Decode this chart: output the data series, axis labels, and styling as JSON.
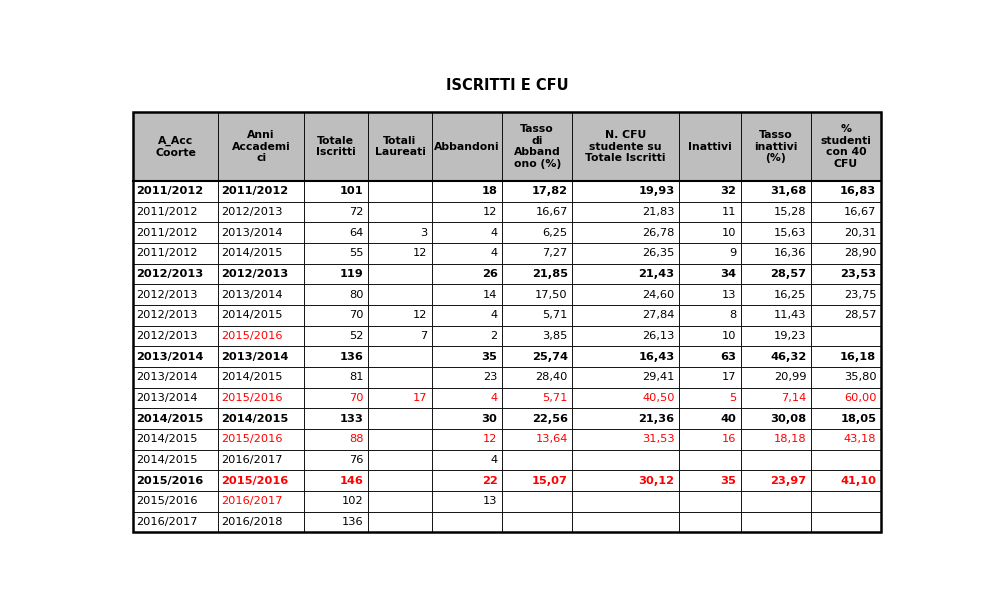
{
  "title": "ISCRITTI E CFU",
  "headers": [
    "A_Acc\nCoorte",
    "Anni\nAccademi\nci",
    "Totale\nIscritti",
    "Totali\nLaureati",
    "Abbandoni",
    "Tasso\ndi\nAbband\nono (%)",
    "N. CFU\nstudente su\nTotale Iscritti",
    "Inattivi",
    "Tasso\ninattivi\n(%)",
    "%\nstudenti\ncon 40\nCFU"
  ],
  "rows": [
    [
      "2011/2012",
      "2011/2012",
      "101",
      "",
      "18",
      "17,82",
      "19,93",
      "32",
      "31,68",
      "16,83"
    ],
    [
      "2011/2012",
      "2012/2013",
      "72",
      "",
      "12",
      "16,67",
      "21,83",
      "11",
      "15,28",
      "16,67"
    ],
    [
      "2011/2012",
      "2013/2014",
      "64",
      "3",
      "4",
      "6,25",
      "26,78",
      "10",
      "15,63",
      "20,31"
    ],
    [
      "2011/2012",
      "2014/2015",
      "55",
      "12",
      "4",
      "7,27",
      "26,35",
      "9",
      "16,36",
      "28,90"
    ],
    [
      "2012/2013",
      "2012/2013",
      "119",
      "",
      "26",
      "21,85",
      "21,43",
      "34",
      "28,57",
      "23,53"
    ],
    [
      "2012/2013",
      "2013/2014",
      "80",
      "",
      "14",
      "17,50",
      "24,60",
      "13",
      "16,25",
      "23,75"
    ],
    [
      "2012/2013",
      "2014/2015",
      "70",
      "12",
      "4",
      "5,71",
      "27,84",
      "8",
      "11,43",
      "28,57"
    ],
    [
      "2012/2013",
      "2015/2016",
      "52",
      "7",
      "2",
      "3,85",
      "26,13",
      "10",
      "19,23",
      ""
    ],
    [
      "2013/2014",
      "2013/2014",
      "136",
      "",
      "35",
      "25,74",
      "16,43",
      "63",
      "46,32",
      "16,18"
    ],
    [
      "2013/2014",
      "2014/2015",
      "81",
      "",
      "23",
      "28,40",
      "29,41",
      "17",
      "20,99",
      "35,80"
    ],
    [
      "2013/2014",
      "2015/2016",
      "70",
      "17",
      "4",
      "5,71",
      "40,50",
      "5",
      "7,14",
      "60,00"
    ],
    [
      "2014/2015",
      "2014/2015",
      "133",
      "",
      "30",
      "22,56",
      "21,36",
      "40",
      "30,08",
      "18,05"
    ],
    [
      "2014/2015",
      "2015/2016",
      "88",
      "",
      "12",
      "13,64",
      "31,53",
      "16",
      "18,18",
      "43,18"
    ],
    [
      "2014/2015",
      "2016/2017",
      "76",
      "",
      "4",
      "",
      "",
      "",
      "",
      ""
    ],
    [
      "2015/2016",
      "2015/2016",
      "146",
      "",
      "22",
      "15,07",
      "30,12",
      "35",
      "23,97",
      "41,10"
    ],
    [
      "2015/2016",
      "2016/2017",
      "102",
      "",
      "13",
      "",
      "",
      "",
      "",
      ""
    ],
    [
      "2016/2017",
      "2016/2018",
      "136",
      "",
      "",
      "",
      "",
      "",
      "",
      ""
    ]
  ],
  "bold_rows": [
    0,
    4,
    8,
    11,
    14
  ],
  "red_col1_rows": [
    7,
    10,
    12,
    14,
    15
  ],
  "red_all_rows": [
    10,
    12,
    14
  ],
  "col_alignments": [
    "left",
    "left",
    "right",
    "right",
    "right",
    "right",
    "right",
    "right",
    "right",
    "right"
  ],
  "col_widths_raw": [
    1.0,
    1.0,
    0.75,
    0.75,
    0.82,
    0.82,
    1.25,
    0.72,
    0.82,
    0.82
  ],
  "header_bg": "#BEBEBE",
  "border_color": "#000000",
  "text_color": "#000000",
  "red_color": "#FF0000",
  "header_fontsize": 7.8,
  "data_fontsize": 8.2,
  "title_fontsize": 10.5,
  "figure_width": 9.89,
  "figure_height": 6.06,
  "dpi": 100
}
